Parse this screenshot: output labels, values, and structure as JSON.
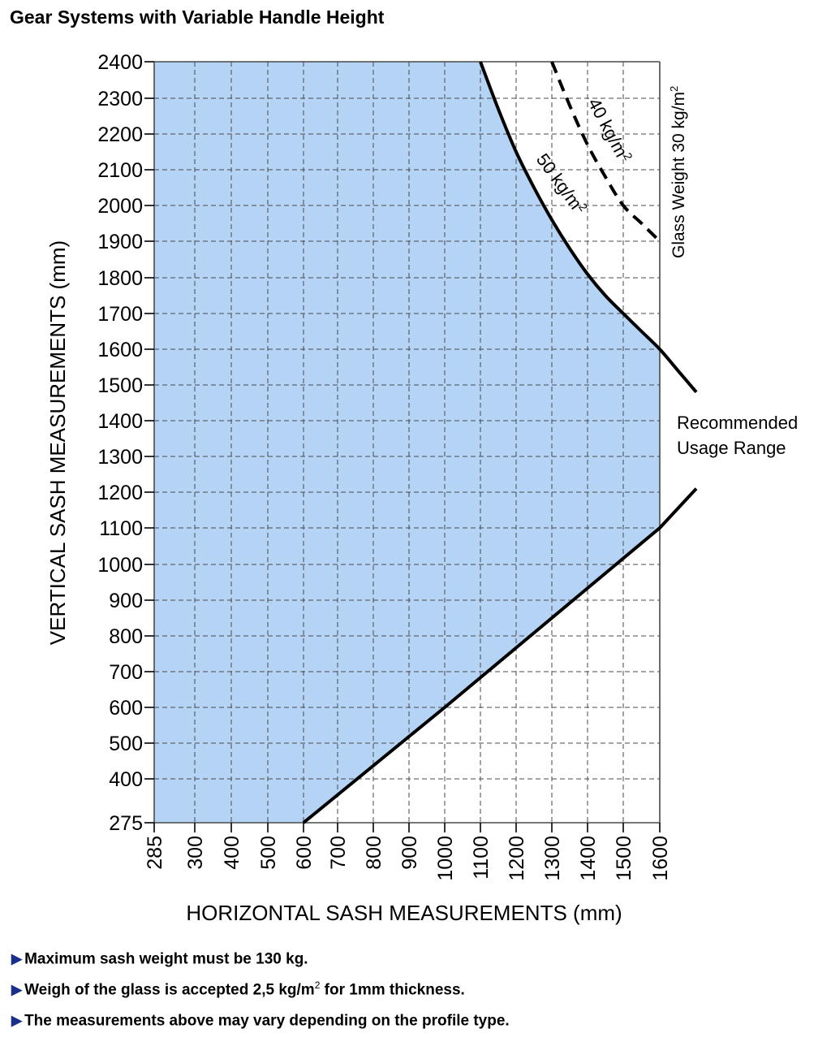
{
  "title": "Gear Systems with Variable Handle Height",
  "chart_data": {
    "type": "line",
    "title": "Gear Systems with Variable Handle Height",
    "xlabel": "HORIZONTAL SASH MEASUREMENTS (mm)",
    "ylabel": "VERTICAL SASH MEASUREMENTS (mm)",
    "x_ticks": [
      "285",
      "300",
      "400",
      "500",
      "600",
      "700",
      "800",
      "900",
      "1000",
      "1100",
      "1200",
      "1300",
      "1400",
      "1500",
      "1600"
    ],
    "y_ticks": [
      "275",
      "400",
      "500",
      "600",
      "700",
      "800",
      "900",
      "1000",
      "1100",
      "1200",
      "1300",
      "1400",
      "1500",
      "1600",
      "1700",
      "1800",
      "1900",
      "2000",
      "2100",
      "2200",
      "2300",
      "2400"
    ],
    "grid": true,
    "region": {
      "label": "Recommended Usage Range",
      "color": "#b4d3f5",
      "bounded_by": [
        "lower limit line",
        "50 kg/m2 curve"
      ]
    },
    "series": [
      {
        "name": "Glass Weight 30 kg/m2",
        "style": "solid",
        "note": "upper edge of chart at 2400 mm and right edge at 1600 mm"
      },
      {
        "name": "40 kg/m2",
        "style": "dashed",
        "x": [
          1300,
          1350,
          1400,
          1450,
          1500,
          1550,
          1600
        ],
        "y": [
          2400,
          2280,
          2170,
          2080,
          2000,
          1950,
          1900
        ]
      },
      {
        "name": "50 kg/m2",
        "style": "solid",
        "x": [
          1100,
          1150,
          1200,
          1250,
          1300,
          1350,
          1400,
          1450,
          1500,
          1550,
          1600,
          1650,
          1700
        ],
        "y": [
          2400,
          2270,
          2150,
          2050,
          1960,
          1880,
          1810,
          1750,
          1700,
          1650,
          1600,
          1540,
          1480
        ]
      },
      {
        "name": "lower limit",
        "style": "solid",
        "x": [
          600,
          1000,
          1600,
          1700
        ],
        "y": [
          275,
          600,
          1100,
          1210
        ]
      }
    ],
    "curve_labels": [
      {
        "text": "40 kg/m",
        "sup": "2"
      },
      {
        "text": "50 kg/m",
        "sup": "2"
      },
      {
        "text": "Glass Weight 30 kg/m",
        "sup": "2"
      }
    ],
    "annotation": [
      "Recommended",
      "Usage Range"
    ]
  },
  "notes": [
    {
      "text": "Maximum sash weight must be 130 kg.",
      "sup": "",
      "tail": ""
    },
    {
      "text": "Weigh of the glass is accepted  2,5 kg/m",
      "sup": "2",
      "tail": " for 1mm thickness."
    },
    {
      "text": "The measurements above may vary depending on the profile type.",
      "sup": "",
      "tail": ""
    }
  ],
  "colors": {
    "region_fill": "#b4d3f5",
    "grid": "#4a4a4a",
    "curve": "#000000",
    "note_marker": "#1a2f8a"
  },
  "icons": {
    "note_marker": "triangle-right-icon"
  }
}
